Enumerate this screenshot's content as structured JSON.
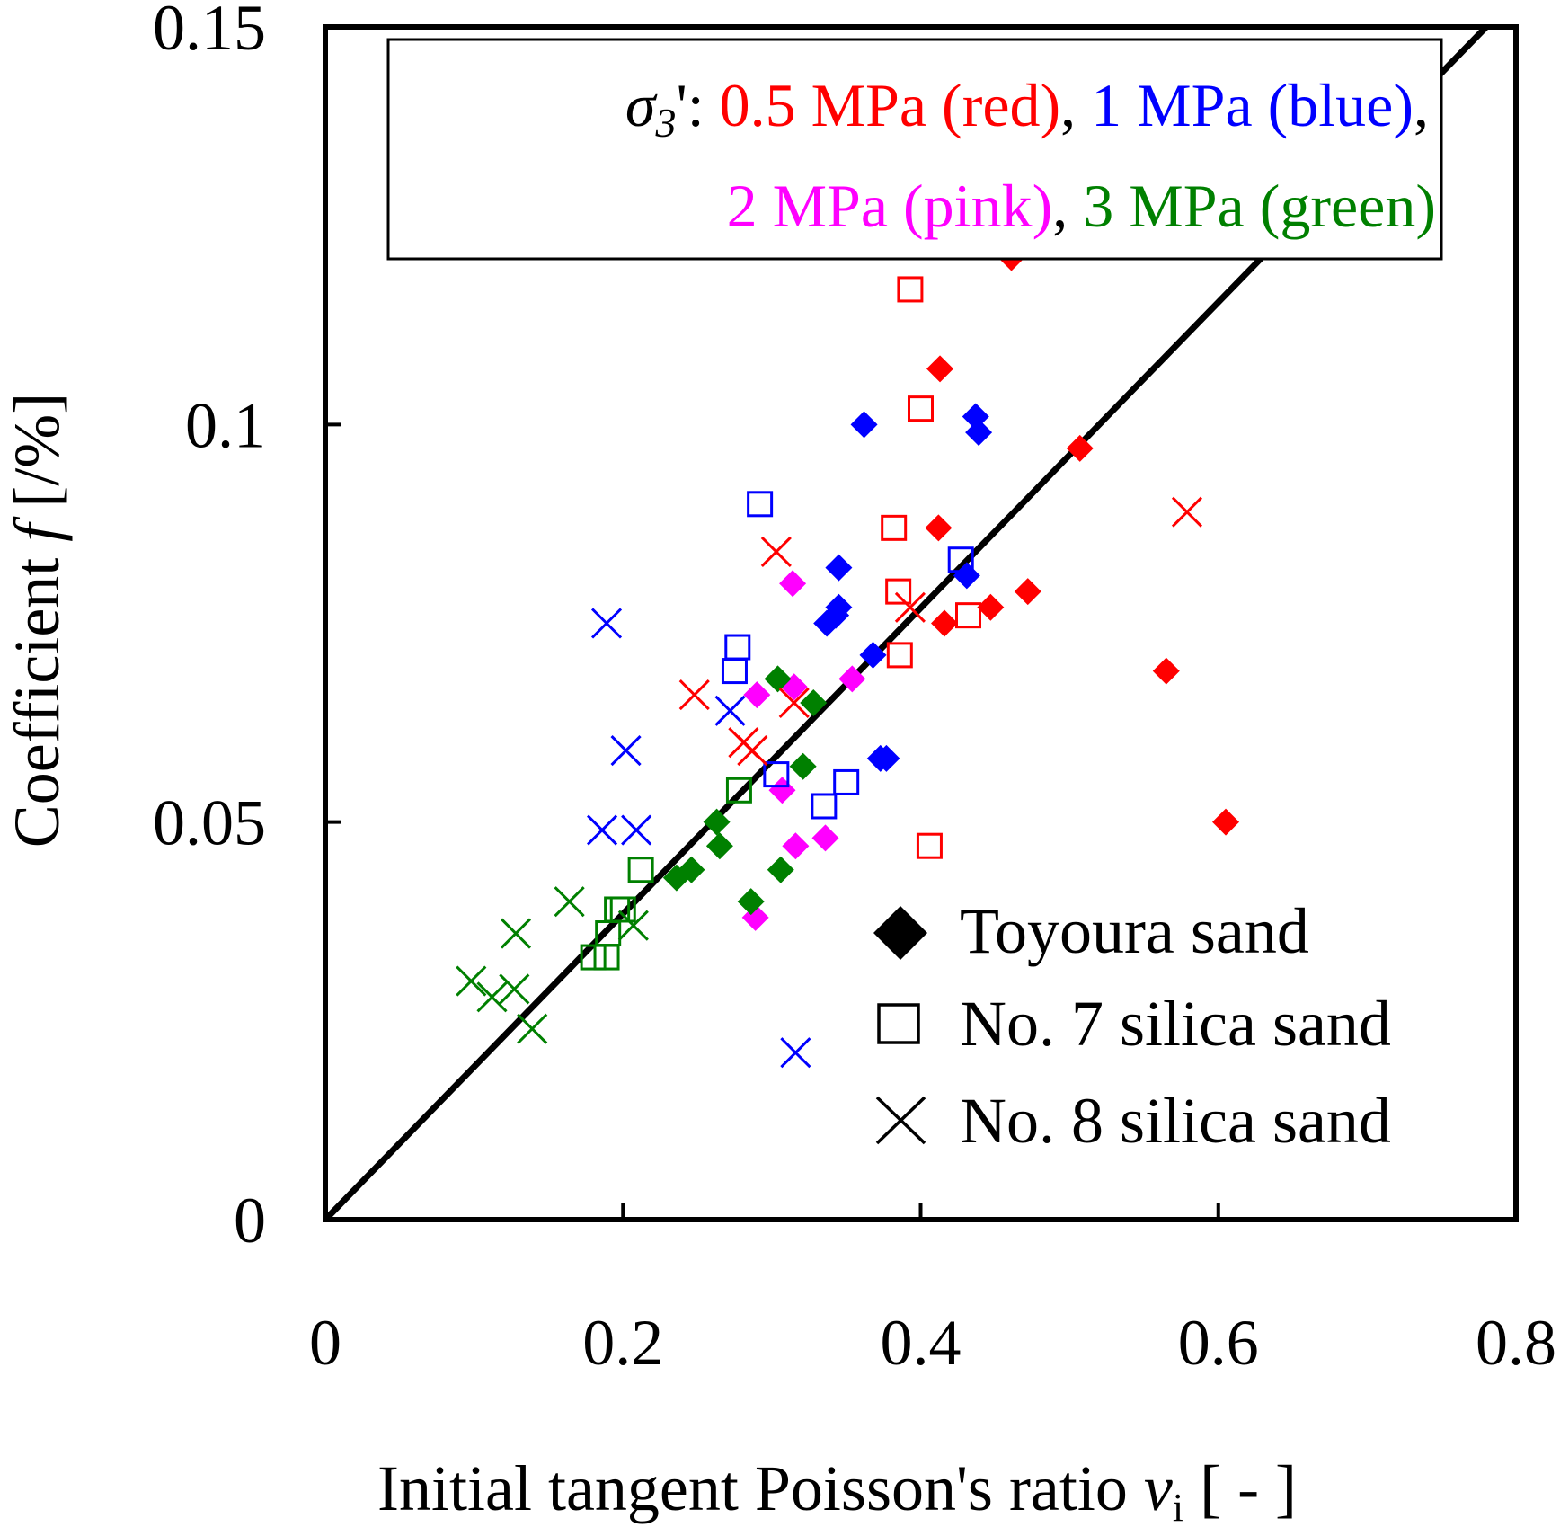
{
  "chart_data": {
    "type": "scatter",
    "xlabel": "Initial tangent Poisson's ratio",
    "xlabel_symbol": "ν",
    "xlabel_subscript": "i",
    "xlabel_unit": "[ - ]",
    "ylabel": "Coefficient",
    "ylabel_symbol": "f",
    "ylabel_unit": "[/%]",
    "xlim": [
      0,
      0.8
    ],
    "ylim": [
      0,
      0.15
    ],
    "xticks": [
      0,
      0.2,
      0.4,
      0.6,
      0.8
    ],
    "xtick_labels": [
      "0",
      "0.2",
      "0.4",
      "0.6",
      "0.8"
    ],
    "yticks": [
      0,
      0.05,
      0.1,
      0.15
    ],
    "ytick_labels": [
      "0",
      "0.05",
      "0.1",
      "0.15"
    ],
    "grid": false,
    "legend_box": {
      "sigma_label": "σ",
      "sigma_subscript": "3",
      "sigma_suffix": "':",
      "red_label": "0.5 MPa (red)",
      "blue_label": "1 MPa (blue)",
      "pink_label": "2 MPa (pink)",
      "green_label": "3 MPa (green)",
      "comma": ","
    },
    "marker_legend": [
      {
        "marker": "diamond",
        "label": "Toyoura sand"
      },
      {
        "marker": "square",
        "label": "No. 7 silica sand"
      },
      {
        "marker": "cross",
        "label": "No. 8 silica sand"
      }
    ],
    "reference_line": {
      "x": [
        0,
        0.78
      ],
      "y": [
        0,
        0.15
      ]
    },
    "colors": {
      "red": "#ff0000",
      "blue": "#0000ff",
      "pink": "#ff00ff",
      "green": "#008000",
      "axis": "#000000"
    },
    "series": [
      {
        "name": "Toyoura sand, 0.5 MPa",
        "marker": "diamond",
        "color": "red",
        "points": [
          [
            0.461,
            0.121
          ],
          [
            0.413,
            0.107
          ],
          [
            0.507,
            0.097
          ],
          [
            0.412,
            0.087
          ],
          [
            0.472,
            0.079
          ],
          [
            0.447,
            0.077
          ],
          [
            0.416,
            0.075
          ],
          [
            0.565,
            0.069
          ],
          [
            0.605,
            0.05
          ]
        ]
      },
      {
        "name": "Toyoura sand, 1 MPa",
        "marker": "diamond",
        "color": "blue",
        "points": [
          [
            0.362,
            0.1
          ],
          [
            0.437,
            0.101
          ],
          [
            0.439,
            0.099
          ],
          [
            0.345,
            0.082
          ],
          [
            0.345,
            0.077
          ],
          [
            0.337,
            0.075
          ],
          [
            0.343,
            0.076
          ],
          [
            0.368,
            0.071
          ],
          [
            0.373,
            0.058
          ],
          [
            0.377,
            0.058
          ],
          [
            0.431,
            0.081
          ]
        ]
      },
      {
        "name": "Toyoura sand, 2 MPa",
        "marker": "diamond",
        "color": "pink",
        "points": [
          [
            0.314,
            0.08
          ],
          [
            0.29,
            0.066
          ],
          [
            0.315,
            0.067
          ],
          [
            0.354,
            0.068
          ],
          [
            0.307,
            0.054
          ],
          [
            0.316,
            0.047
          ],
          [
            0.336,
            0.048
          ],
          [
            0.289,
            0.038
          ]
        ]
      },
      {
        "name": "Toyoura sand, 3 MPa",
        "marker": "diamond",
        "color": "green",
        "points": [
          [
            0.304,
            0.068
          ],
          [
            0.328,
            0.065
          ],
          [
            0.321,
            0.057
          ],
          [
            0.263,
            0.05
          ],
          [
            0.265,
            0.047
          ],
          [
            0.246,
            0.044
          ],
          [
            0.236,
            0.043
          ],
          [
            0.306,
            0.044
          ],
          [
            0.286,
            0.04
          ]
        ]
      },
      {
        "name": "No. 7 silica sand, 0.5 MPa",
        "marker": "square",
        "color": "red",
        "points": [
          [
            0.393,
            0.117
          ],
          [
            0.4,
            0.102
          ],
          [
            0.382,
            0.087
          ],
          [
            0.385,
            0.079
          ],
          [
            0.432,
            0.076
          ],
          [
            0.386,
            0.071
          ],
          [
            0.406,
            0.047
          ]
        ]
      },
      {
        "name": "No. 7 silica sand, 1 MPa",
        "marker": "square",
        "color": "blue",
        "points": [
          [
            0.292,
            0.09
          ],
          [
            0.427,
            0.083
          ],
          [
            0.277,
            0.072
          ],
          [
            0.275,
            0.069
          ],
          [
            0.303,
            0.056
          ],
          [
            0.335,
            0.052
          ],
          [
            0.35,
            0.055
          ]
        ]
      },
      {
        "name": "No. 7 silica sand, 3 MPa",
        "marker": "square",
        "color": "green",
        "points": [
          [
            0.278,
            0.054
          ],
          [
            0.212,
            0.044
          ],
          [
            0.2,
            0.039
          ],
          [
            0.196,
            0.039
          ],
          [
            0.19,
            0.036
          ],
          [
            0.189,
            0.033
          ],
          [
            0.18,
            0.033
          ]
        ]
      },
      {
        "name": "No. 8 silica sand, 0.5 MPa",
        "marker": "cross",
        "color": "red",
        "points": [
          [
            0.579,
            0.089
          ],
          [
            0.303,
            0.084
          ],
          [
            0.248,
            0.066
          ],
          [
            0.315,
            0.065
          ],
          [
            0.281,
            0.06
          ],
          [
            0.287,
            0.059
          ],
          [
            0.393,
            0.077
          ]
        ]
      },
      {
        "name": "No. 8 silica sand, 1 MPa",
        "marker": "cross",
        "color": "blue",
        "points": [
          [
            0.189,
            0.075
          ],
          [
            0.272,
            0.064
          ],
          [
            0.202,
            0.059
          ],
          [
            0.186,
            0.049
          ],
          [
            0.209,
            0.049
          ],
          [
            0.316,
            0.021
          ]
        ]
      },
      {
        "name": "No. 8 silica sand, 3 MPa",
        "marker": "cross",
        "color": "green",
        "points": [
          [
            0.164,
            0.04
          ],
          [
            0.128,
            0.036
          ],
          [
            0.207,
            0.037
          ],
          [
            0.098,
            0.03
          ],
          [
            0.112,
            0.028
          ],
          [
            0.127,
            0.029
          ],
          [
            0.139,
            0.024
          ]
        ]
      }
    ]
  }
}
